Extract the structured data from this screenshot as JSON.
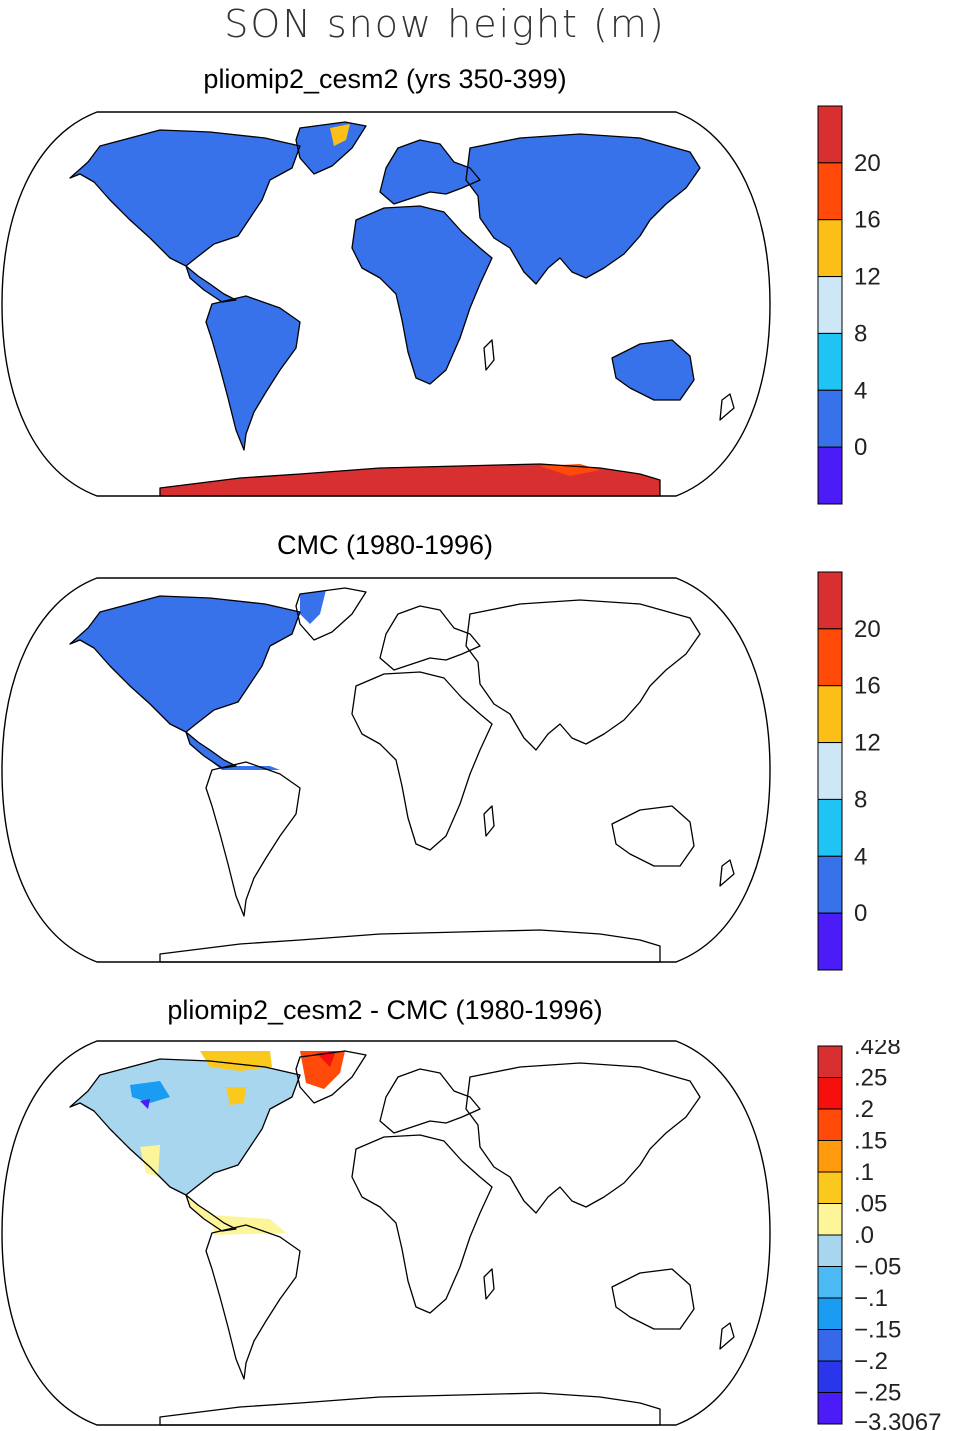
{
  "figure": {
    "title": "SON snow height (m)"
  },
  "panels": [
    {
      "id": "model",
      "title": "pliomip2_cesm2 (yrs 350-399)",
      "colorbar": {
        "labels": [
          "20",
          "16",
          "12",
          "8",
          "4",
          "0"
        ],
        "colors": [
          "#d83030",
          "#ff4a0a",
          "#fbbf18",
          "#cde7f6",
          "#1fc4f4",
          "#3872ea",
          "#4b1cf8"
        ]
      }
    },
    {
      "id": "obs",
      "title": "CMC (1980-1996)",
      "colorbar": {
        "labels": [
          "20",
          "16",
          "12",
          "8",
          "4",
          "0"
        ],
        "colors": [
          "#d83030",
          "#ff4a0a",
          "#fbbf18",
          "#cde7f6",
          "#1fc4f4",
          "#3872ea",
          "#4b1cf8"
        ]
      }
    },
    {
      "id": "diff",
      "title": "pliomip2_cesm2 - CMC (1980-1996)",
      "colorbar": {
        "labels": [
          ".428",
          ".25",
          ".2",
          ".15",
          ".1",
          ".05",
          ".0",
          "−.05",
          "−.1",
          "−.15",
          "−.2",
          "−.25",
          "−3.3067"
        ],
        "colors": [
          "#d83030",
          "#f5100e",
          "#ff4a0a",
          "#ff9a0f",
          "#fbc81e",
          "#fcf59a",
          "#a9d6ef",
          "#4cbaf2",
          "#1a9cf2",
          "#3768ea",
          "#2a36ea",
          "#4b1cf8"
        ]
      }
    }
  ]
}
